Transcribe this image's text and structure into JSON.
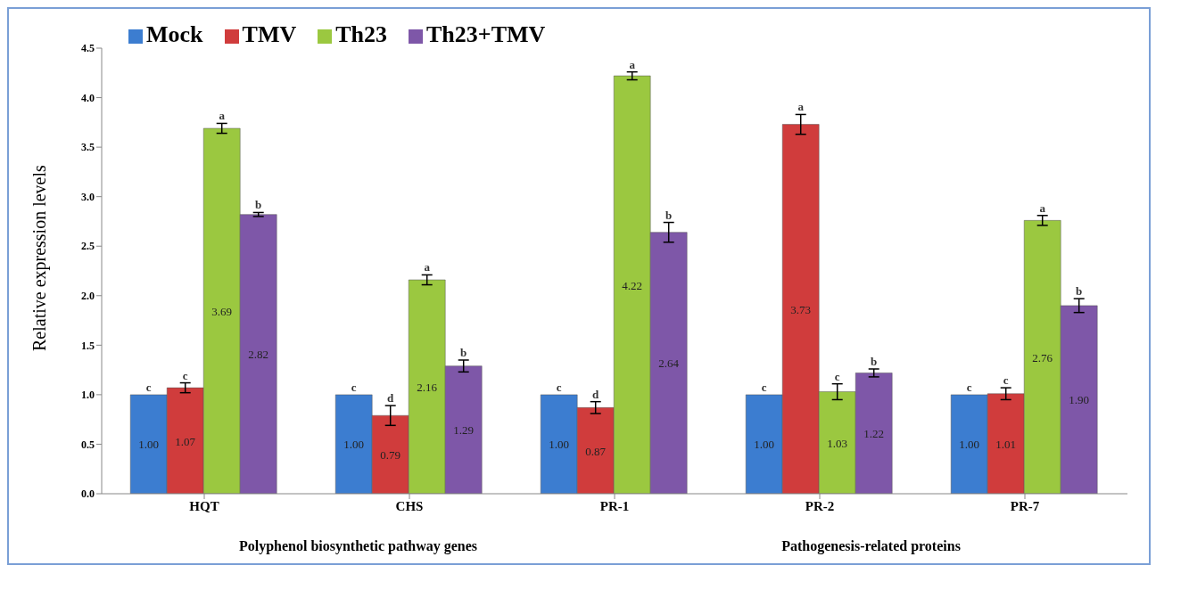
{
  "chart_data": {
    "type": "bar",
    "ylabel": "Relative expression levels",
    "categories": [
      "HQT",
      "CHS",
      "PR-1",
      "PR-2",
      "PR-7"
    ],
    "series": [
      {
        "name": "Mock",
        "color": "#3c7dd0",
        "values": [
          1.0,
          1.0,
          1.0,
          1.0,
          1.0
        ],
        "value_labels": [
          "1.00",
          "1.00",
          "1.00",
          "1.00",
          "1.00"
        ]
      },
      {
        "name": "TMV",
        "color": "#d03c3c",
        "values": [
          1.07,
          0.79,
          0.87,
          3.73,
          1.01
        ],
        "errors": [
          0.05,
          0.1,
          0.06,
          0.1,
          0.06
        ],
        "value_labels": [
          "1.07",
          "0.79",
          "0.87",
          "3.73",
          "1.01"
        ]
      },
      {
        "name": "Th23",
        "color": "#9bc840",
        "values": [
          3.69,
          2.16,
          4.22,
          1.03,
          2.76
        ],
        "errors": [
          0.05,
          0.05,
          0.04,
          0.08,
          0.05
        ],
        "value_labels": [
          "3.69",
          "2.16",
          "4.22",
          "1.03",
          "2.76"
        ]
      },
      {
        "name": "Th23+TMV",
        "color": "#7e57a8",
        "values": [
          2.82,
          1.29,
          2.64,
          1.22,
          1.9
        ],
        "errors": [
          0.02,
          0.06,
          0.1,
          0.04,
          0.07
        ],
        "value_labels": [
          "2.82",
          "1.29",
          "2.64",
          "1.22",
          "1.90"
        ]
      }
    ],
    "ylim": [
      0,
      4.5
    ],
    "yticks": [
      {
        "value": 0,
        "label": "0.0"
      },
      {
        "value": 0.5,
        "label": "0.5"
      },
      {
        "value": 1,
        "label": "1.0"
      },
      {
        "value": 1.5,
        "label": "1.5"
      },
      {
        "value": 2,
        "label": "2.0"
      },
      {
        "value": 2.5,
        "label": "2.5"
      },
      {
        "value": 3,
        "label": "3.0"
      },
      {
        "value": 3.5,
        "label": "3.5"
      },
      {
        "value": 4,
        "label": "4.0"
      },
      {
        "value": 4.5,
        "label": "4.5"
      }
    ],
    "legend": "top left",
    "annotations": [
      "c",
      "c",
      "a",
      "b",
      "c",
      "d",
      "a",
      "b",
      "c",
      "d",
      "a",
      "b",
      "c",
      "a",
      "c",
      "b",
      "c",
      "c",
      "a",
      "b",
      "Polyphenol biosynthetic pathway genes",
      "Pathogenesis-related proteins"
    ]
  }
}
